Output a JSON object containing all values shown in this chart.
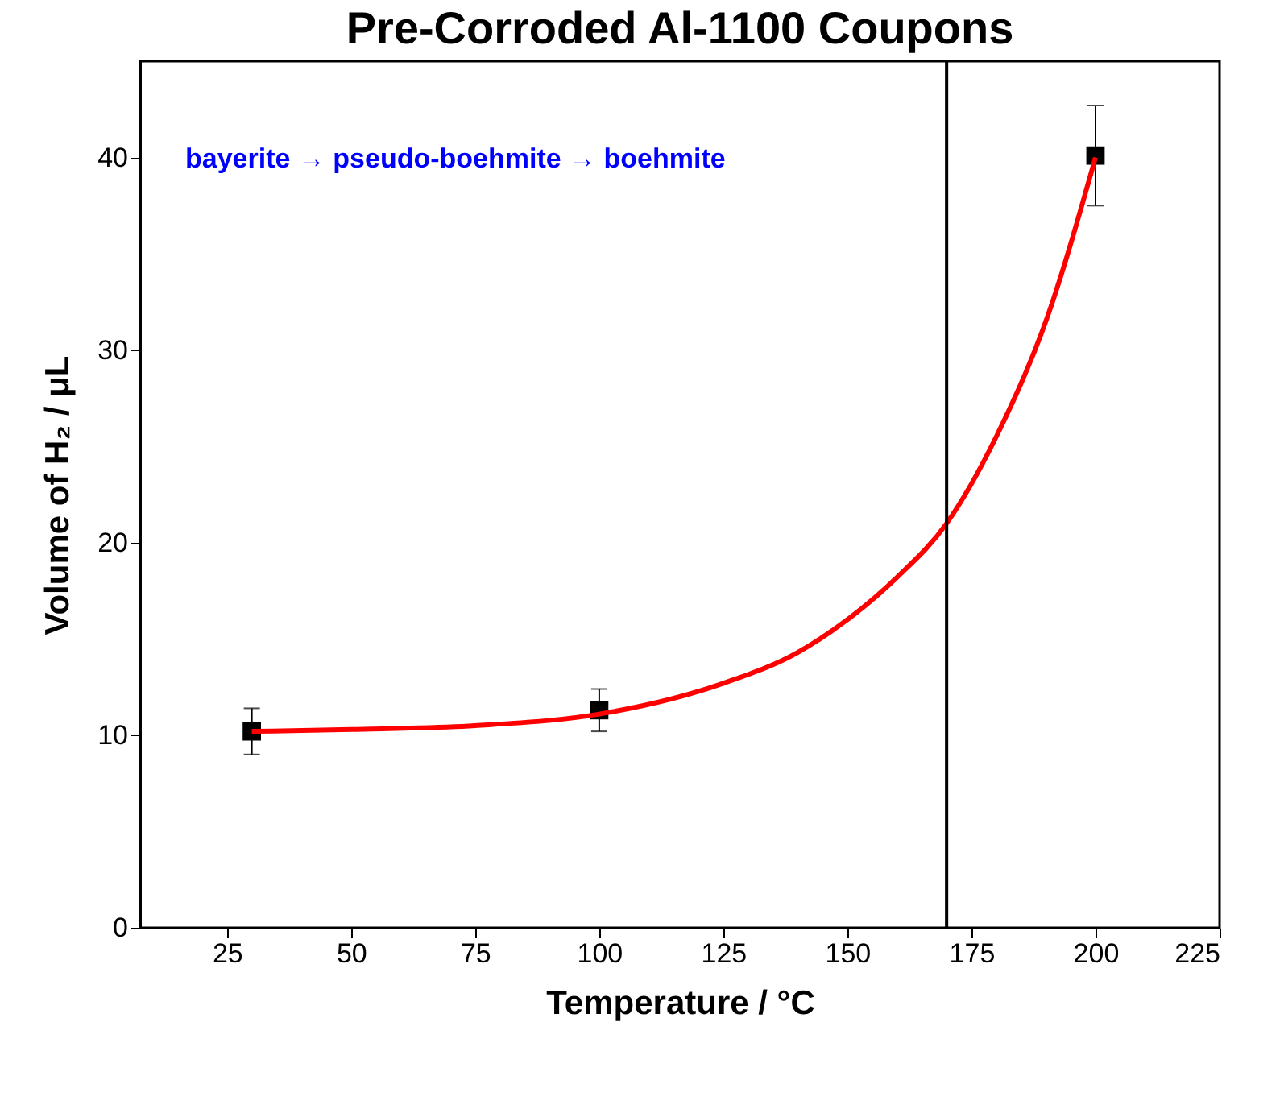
{
  "chart_data": {
    "type": "scatter",
    "title": "Pre-Corroded Al-1100 Coupons",
    "xlabel": "Temperature / °C",
    "ylabel": "Volume of H₂ / μL",
    "xlim": [
      7.5,
      225
    ],
    "xticks": [
      25,
      50,
      75,
      100,
      125,
      150,
      175,
      200,
      225
    ],
    "ylim": [
      0,
      45
    ],
    "yticks": [
      0,
      10,
      20,
      30,
      40
    ],
    "grid": false,
    "legend": false,
    "annotations": [
      "bayerite → pseudo-boehmite → boehmite"
    ],
    "ref_lines": [
      {
        "axis": "x",
        "value": 170,
        "color": "#000000"
      }
    ],
    "series": [
      {
        "type": "scatter",
        "color": "#000000",
        "marker": "square",
        "x": [
          30,
          100,
          200
        ],
        "values": [
          10.2,
          11.3,
          40.1
        ],
        "errors": [
          1.2,
          1.1,
          [
            37.5,
            42.7
          ]
        ]
      },
      {
        "type": "line",
        "color": "#ff0000",
        "marker": "none",
        "line_style": "solid",
        "x": [
          30,
          50,
          75,
          100,
          125,
          140,
          150,
          160,
          170,
          180,
          190,
          200
        ],
        "values": [
          10.2,
          10.3,
          10.5,
          11.1,
          12.7,
          14.3,
          16.0,
          18.2,
          21.0,
          25.5,
          31.5,
          40.0
        ]
      }
    ]
  }
}
